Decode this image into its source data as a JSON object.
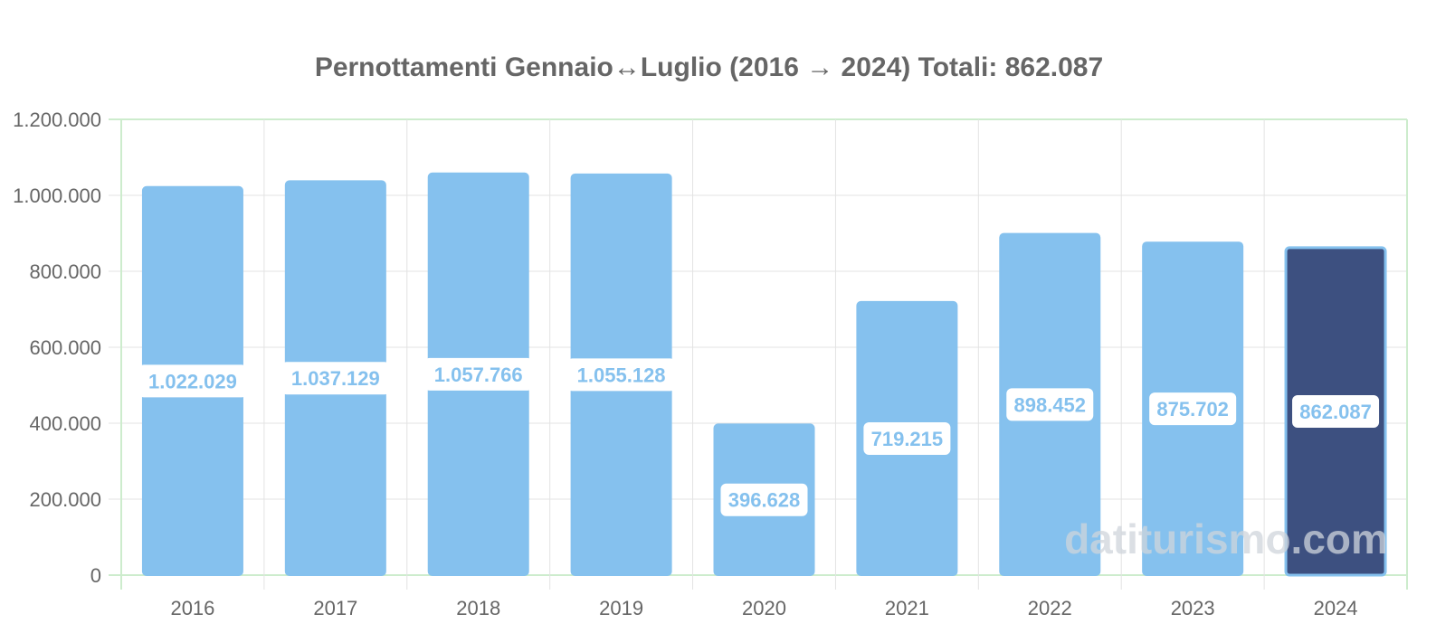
{
  "chart_data": {
    "type": "bar",
    "title": "Pernottamenti Gennaio↔Luglio (2016 → 2024) Totali: 862.087",
    "categories": [
      "2016",
      "2017",
      "2018",
      "2019",
      "2020",
      "2021",
      "2022",
      "2023",
      "2024"
    ],
    "values": [
      1022029,
      1037129,
      1057766,
      1055128,
      396628,
      719215,
      898452,
      875702,
      862087
    ],
    "data_labels": [
      "1.022.029",
      "1.037.129",
      "1.057.766",
      "1.055.128",
      "396.628",
      "719.215",
      "898.452",
      "875.702",
      "862.087"
    ],
    "yticks": [
      "0",
      "200.000",
      "400.000",
      "600.000",
      "800.000",
      "1.000.000",
      "1.200.000"
    ],
    "ylim": [
      0,
      1200000
    ],
    "grid": true,
    "highlight_category": "2024",
    "colors": {
      "bar": "#85c1ee",
      "highlight": "#3d5080",
      "label": "#85c1ee",
      "grid": "#e3e3e3",
      "frame": "#cdeccd"
    }
  },
  "watermark": "datiturismo.com"
}
